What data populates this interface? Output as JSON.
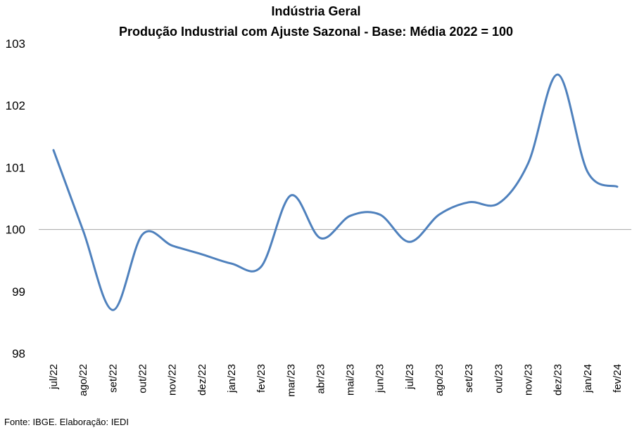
{
  "chart_data": {
    "type": "line",
    "title": "Indústria Geral",
    "subtitle": "Produção Industrial com Ajuste Sazonal - Base: Média 2022 = 100",
    "xlabel": "",
    "ylabel": "",
    "categories": [
      "jul/22",
      "ago/22",
      "set/22",
      "out/22",
      "nov/22",
      "dez/22",
      "jan/23",
      "fev/23",
      "mar/23",
      "abr/23",
      "mai/23",
      "jun/23",
      "jul/23",
      "ago/23",
      "set/23",
      "out/23",
      "nov/23",
      "dez/23",
      "jan/24",
      "fev/24"
    ],
    "series": [
      {
        "name": "",
        "values": [
          101.28,
          99.98,
          98.7,
          99.92,
          99.74,
          99.6,
          99.45,
          99.4,
          100.55,
          99.86,
          100.22,
          100.24,
          99.8,
          100.24,
          100.44,
          100.42,
          101.07,
          102.5,
          100.93,
          100.69
        ],
        "color": "#4f81bd"
      }
    ],
    "ylim": [
      98,
      103
    ],
    "yticks": [
      "98",
      "99",
      "100",
      "101",
      "102",
      "103"
    ],
    "reference_line": 100,
    "reference_line_color": "#a6a6a6",
    "grid": false,
    "legend": "none"
  },
  "footer": {
    "source": "Fonte: IBGE. Elaboração: IEDI"
  }
}
